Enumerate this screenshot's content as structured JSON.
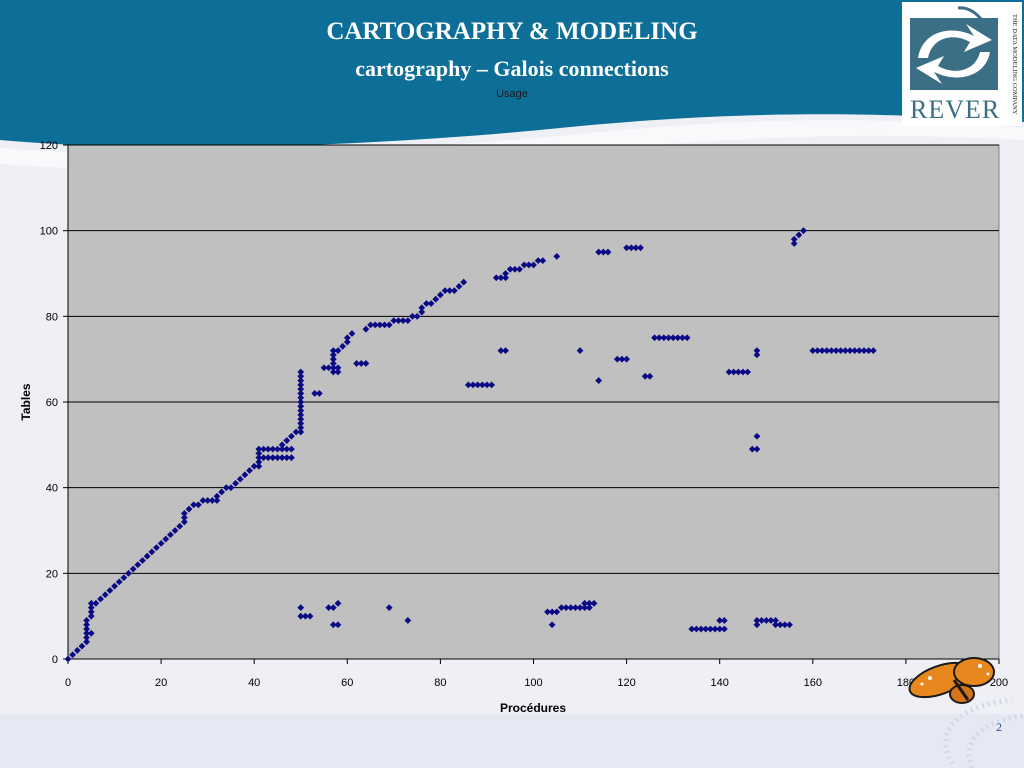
{
  "slide": {
    "title": "CARTOGRAPHY & MODELING",
    "subtitle": "cartography – Galois connections",
    "page_number": "2"
  },
  "logo": {
    "text": "REVER",
    "tagline": "THE DATA MODELING COMPANY"
  },
  "colors": {
    "banner": "#0d6f98",
    "plot_area": "#c0c0c0",
    "marker": "#0a0a86"
  },
  "chart_data": {
    "type": "scatter",
    "title": "Usage",
    "xlabel": "Procédures",
    "ylabel": "Tables",
    "xlim": [
      0,
      200
    ],
    "ylim": [
      0,
      120
    ],
    "xticks": [
      0,
      20,
      40,
      60,
      80,
      100,
      120,
      140,
      160,
      180,
      200
    ],
    "yticks": [
      0,
      20,
      40,
      60,
      80,
      100,
      120
    ],
    "grid": "horizontal",
    "marker": "diamond",
    "points": [
      [
        0,
        0
      ],
      [
        1,
        1
      ],
      [
        2,
        2
      ],
      [
        3,
        3
      ],
      [
        4,
        4
      ],
      [
        4,
        5
      ],
      [
        4,
        6
      ],
      [
        4,
        7
      ],
      [
        4,
        8
      ],
      [
        4,
        9
      ],
      [
        5,
        6
      ],
      [
        5,
        10
      ],
      [
        5,
        11
      ],
      [
        5,
        12
      ],
      [
        5,
        13
      ],
      [
        6,
        13
      ],
      [
        7,
        14
      ],
      [
        8,
        15
      ],
      [
        9,
        16
      ],
      [
        10,
        17
      ],
      [
        11,
        18
      ],
      [
        12,
        19
      ],
      [
        13,
        20
      ],
      [
        14,
        21
      ],
      [
        15,
        22
      ],
      [
        16,
        23
      ],
      [
        17,
        24
      ],
      [
        18,
        25
      ],
      [
        19,
        26
      ],
      [
        20,
        27
      ],
      [
        21,
        28
      ],
      [
        22,
        29
      ],
      [
        23,
        30
      ],
      [
        24,
        31
      ],
      [
        25,
        32
      ],
      [
        25,
        33
      ],
      [
        25,
        34
      ],
      [
        26,
        35
      ],
      [
        27,
        36
      ],
      [
        28,
        36
      ],
      [
        29,
        37
      ],
      [
        30,
        37
      ],
      [
        31,
        37
      ],
      [
        32,
        37
      ],
      [
        32,
        38
      ],
      [
        33,
        39
      ],
      [
        34,
        40
      ],
      [
        35,
        40
      ],
      [
        36,
        41
      ],
      [
        37,
        42
      ],
      [
        38,
        43
      ],
      [
        39,
        44
      ],
      [
        40,
        45
      ],
      [
        41,
        45
      ],
      [
        41,
        46
      ],
      [
        41,
        47
      ],
      [
        41,
        48
      ],
      [
        41,
        49
      ],
      [
        42,
        47
      ],
      [
        43,
        47
      ],
      [
        44,
        47
      ],
      [
        45,
        47
      ],
      [
        46,
        47
      ],
      [
        47,
        47
      ],
      [
        48,
        47
      ],
      [
        42,
        49
      ],
      [
        43,
        49
      ],
      [
        44,
        49
      ],
      [
        45,
        49
      ],
      [
        46,
        49
      ],
      [
        47,
        49
      ],
      [
        48,
        49
      ],
      [
        46,
        50
      ],
      [
        47,
        51
      ],
      [
        48,
        52
      ],
      [
        49,
        53
      ],
      [
        50,
        53
      ],
      [
        50,
        54
      ],
      [
        50,
        55
      ],
      [
        50,
        56
      ],
      [
        50,
        57
      ],
      [
        50,
        58
      ],
      [
        50,
        59
      ],
      [
        50,
        60
      ],
      [
        50,
        61
      ],
      [
        50,
        62
      ],
      [
        50,
        63
      ],
      [
        50,
        64
      ],
      [
        50,
        65
      ],
      [
        50,
        66
      ],
      [
        50,
        67
      ],
      [
        53,
        62
      ],
      [
        54,
        62
      ],
      [
        55,
        68
      ],
      [
        56,
        68
      ],
      [
        57,
        67
      ],
      [
        57,
        68
      ],
      [
        57,
        69
      ],
      [
        57,
        70
      ],
      [
        57,
        71
      ],
      [
        57,
        72
      ],
      [
        58,
        67
      ],
      [
        58,
        68
      ],
      [
        58,
        72
      ],
      [
        59,
        73
      ],
      [
        60,
        74
      ],
      [
        60,
        75
      ],
      [
        61,
        76
      ],
      [
        62,
        69
      ],
      [
        63,
        69
      ],
      [
        64,
        69
      ],
      [
        64,
        77
      ],
      [
        65,
        78
      ],
      [
        66,
        78
      ],
      [
        67,
        78
      ],
      [
        68,
        78
      ],
      [
        69,
        78
      ],
      [
        70,
        79
      ],
      [
        71,
        79
      ],
      [
        72,
        79
      ],
      [
        73,
        79
      ],
      [
        74,
        80
      ],
      [
        75,
        80
      ],
      [
        76,
        81
      ],
      [
        76,
        82
      ],
      [
        77,
        83
      ],
      [
        78,
        83
      ],
      [
        79,
        84
      ],
      [
        80,
        85
      ],
      [
        81,
        86
      ],
      [
        82,
        86
      ],
      [
        83,
        86
      ],
      [
        84,
        87
      ],
      [
        85,
        88
      ],
      [
        86,
        64
      ],
      [
        87,
        64
      ],
      [
        88,
        64
      ],
      [
        89,
        64
      ],
      [
        90,
        64
      ],
      [
        91,
        64
      ],
      [
        92,
        89
      ],
      [
        93,
        89
      ],
      [
        94,
        89
      ],
      [
        94,
        90
      ],
      [
        95,
        91
      ],
      [
        96,
        91
      ],
      [
        97,
        91
      ],
      [
        98,
        92
      ],
      [
        99,
        92
      ],
      [
        100,
        92
      ],
      [
        101,
        93
      ],
      [
        102,
        93
      ],
      [
        105,
        94
      ],
      [
        93,
        72
      ],
      [
        94,
        72
      ],
      [
        110,
        72
      ],
      [
        114,
        65
      ],
      [
        114,
        95
      ],
      [
        115,
        95
      ],
      [
        116,
        95
      ],
      [
        118,
        70
      ],
      [
        119,
        70
      ],
      [
        120,
        70
      ],
      [
        120,
        96
      ],
      [
        121,
        96
      ],
      [
        122,
        96
      ],
      [
        123,
        96
      ],
      [
        124,
        66
      ],
      [
        125,
        66
      ],
      [
        126,
        75
      ],
      [
        127,
        75
      ],
      [
        128,
        75
      ],
      [
        129,
        75
      ],
      [
        130,
        75
      ],
      [
        131,
        75
      ],
      [
        132,
        75
      ],
      [
        133,
        75
      ],
      [
        142,
        67
      ],
      [
        143,
        67
      ],
      [
        144,
        67
      ],
      [
        145,
        67
      ],
      [
        146,
        67
      ],
      [
        147,
        49
      ],
      [
        148,
        49
      ],
      [
        148,
        52
      ],
      [
        148,
        71
      ],
      [
        148,
        72
      ],
      [
        156,
        97
      ],
      [
        156,
        98
      ],
      [
        157,
        99
      ],
      [
        158,
        100
      ],
      [
        160,
        72
      ],
      [
        161,
        72
      ],
      [
        162,
        72
      ],
      [
        163,
        72
      ],
      [
        164,
        72
      ],
      [
        165,
        72
      ],
      [
        166,
        72
      ],
      [
        167,
        72
      ],
      [
        168,
        72
      ],
      [
        169,
        72
      ],
      [
        170,
        72
      ],
      [
        171,
        72
      ],
      [
        172,
        72
      ],
      [
        173,
        72
      ],
      [
        50,
        10
      ],
      [
        50,
        12
      ],
      [
        51,
        10
      ],
      [
        52,
        10
      ],
      [
        56,
        12
      ],
      [
        57,
        8
      ],
      [
        57,
        12
      ],
      [
        58,
        8
      ],
      [
        58,
        13
      ],
      [
        69,
        12
      ],
      [
        73,
        9
      ],
      [
        103,
        11
      ],
      [
        104,
        8
      ],
      [
        104,
        11
      ],
      [
        105,
        11
      ],
      [
        106,
        12
      ],
      [
        107,
        12
      ],
      [
        108,
        12
      ],
      [
        109,
        12
      ],
      [
        110,
        12
      ],
      [
        111,
        12
      ],
      [
        111,
        13
      ],
      [
        112,
        12
      ],
      [
        112,
        13
      ],
      [
        113,
        13
      ],
      [
        134,
        7
      ],
      [
        135,
        7
      ],
      [
        136,
        7
      ],
      [
        137,
        7
      ],
      [
        138,
        7
      ],
      [
        139,
        7
      ],
      [
        140,
        7
      ],
      [
        140,
        9
      ],
      [
        141,
        7
      ],
      [
        141,
        9
      ],
      [
        148,
        8
      ],
      [
        148,
        9
      ],
      [
        149,
        9
      ],
      [
        150,
        9
      ],
      [
        151,
        9
      ],
      [
        152,
        8
      ],
      [
        152,
        9
      ],
      [
        153,
        8
      ],
      [
        154,
        8
      ],
      [
        155,
        8
      ]
    ]
  }
}
